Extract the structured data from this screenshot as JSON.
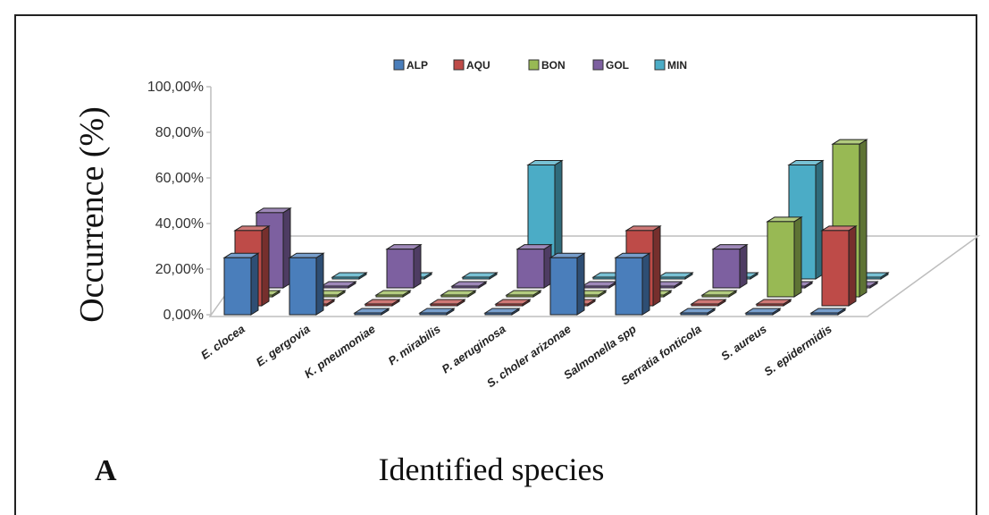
{
  "chart_data": {
    "type": "bar",
    "subtype": "3d-clustered-column",
    "panel_label": "A",
    "xlabel": "Identified species",
    "ylabel": "Occurrence (%)",
    "ylim": [
      0,
      100
    ],
    "yticks": [
      "0,00%",
      "20,00%",
      "40,00%",
      "60,00%",
      "80,00%",
      "100,00%"
    ],
    "legend_position": "top-center",
    "categories": [
      "E. clocea",
      "E. gergovia",
      "K. pneumoniae",
      "P. mirabilis",
      "P. aeruginosa",
      "S. choler arizonae",
      "Salmonella spp",
      "Serratia fonticola",
      "S. aureus",
      "S. epidermidis"
    ],
    "series": [
      {
        "name": "ALP",
        "color": "#4a7ebb",
        "values": [
          25,
          25,
          0,
          0,
          0,
          25,
          25,
          0,
          0,
          0
        ]
      },
      {
        "name": "AQU",
        "color": "#be4b48",
        "values": [
          33,
          0,
          0,
          0,
          0,
          0,
          33,
          0,
          0,
          33
        ]
      },
      {
        "name": "BON",
        "color": "#98b954",
        "values": [
          0,
          0,
          0,
          0,
          0,
          0,
          0,
          0,
          33,
          67
        ]
      },
      {
        "name": "GOL",
        "color": "#7d60a0",
        "values": [
          33,
          0,
          17,
          0,
          17,
          0,
          0,
          17,
          0,
          0
        ]
      },
      {
        "name": "MIN",
        "color": "#4bacc6",
        "values": [
          0,
          0,
          0,
          0,
          50,
          0,
          0,
          0,
          50,
          0
        ]
      }
    ],
    "grid": false
  }
}
